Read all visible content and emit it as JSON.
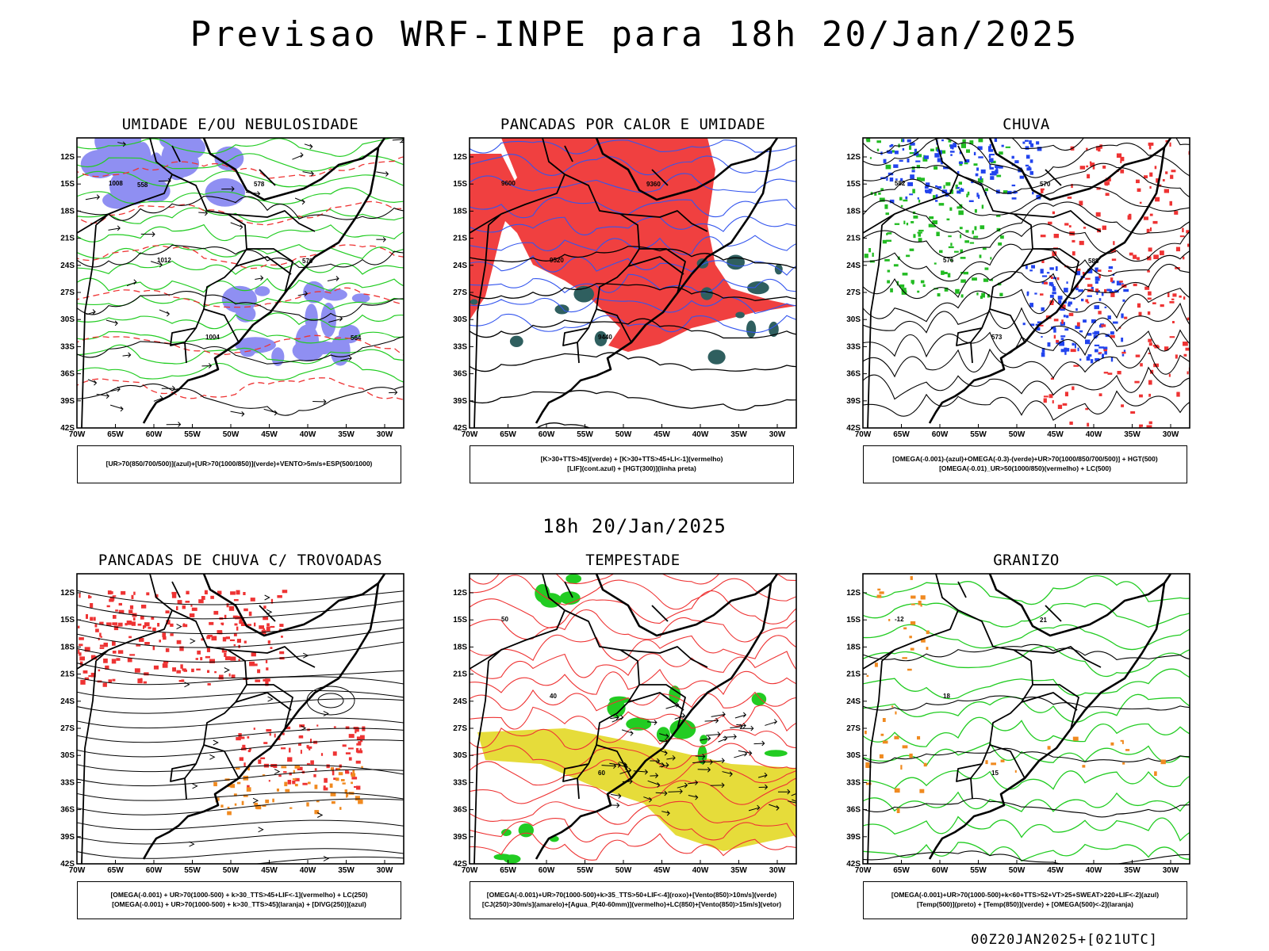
{
  "main_title": "Previsao WRF-INPE  para 18h 20/Jan/2025",
  "mid_title": "18h 20/Jan/2025",
  "footer": "00Z20JAN2025+[021UTC]",
  "chart_data": [
    {
      "type": "map",
      "title": "UMIDADE E/OU NEBULOSIDADE",
      "lat_labels": [
        "12S",
        "15S",
        "18S",
        "21S",
        "24S",
        "27S",
        "30S",
        "33S",
        "36S",
        "39S",
        "42S"
      ],
      "lon_labels": [
        "70W",
        "65W",
        "60W",
        "55W",
        "50W",
        "45W",
        "40W",
        "35W",
        "30W"
      ],
      "legend": [
        "[UR>70(850/700/500)](azul)+[UR>70(1000/850)](verde)+VENTO>5m/s+ESP(500/1000)"
      ],
      "contour_labels": [
        "1008",
        "1012",
        "1004",
        "578",
        "570",
        "564",
        "558"
      ],
      "colors": {
        "blue": "#8f8ff2",
        "green": "#22cc22",
        "red": "#ee3333"
      }
    },
    {
      "type": "map",
      "title": "PANCADAS POR CALOR E UMIDADE",
      "lat_labels": [
        "12S",
        "15S",
        "18S",
        "21S",
        "24S",
        "27S",
        "30S",
        "33S",
        "36S",
        "39S",
        "42S"
      ],
      "lon_labels": [
        "70W",
        "65W",
        "60W",
        "55W",
        "50W",
        "45W",
        "40W",
        "35W",
        "30W"
      ],
      "legend": [
        "[K>30+TTS>45](verde)  +  [K>30+TTS>45+LI<-1](vermelho)",
        "[LIF](cont.azul)  +  [HGT(300)](linha preta)"
      ],
      "contour_labels": [
        "9600",
        "9520",
        "9440",
        "9360"
      ],
      "colors": {
        "red": "#f04040",
        "teal": "#2f5f5f",
        "blue": "#3355ee"
      }
    },
    {
      "type": "map",
      "title": "CHUVA",
      "lat_labels": [
        "12S",
        "15S",
        "18S",
        "21S",
        "24S",
        "27S",
        "30S",
        "33S",
        "36S",
        "39S",
        "42S"
      ],
      "lon_labels": [
        "70W",
        "65W",
        "60W",
        "55W",
        "50W",
        "45W",
        "40W",
        "35W",
        "30W"
      ],
      "legend": [
        "[OMEGA(-0.001)-(azul)+OMEGA(-0.3)-(verde)+UR>70(1000/850/700/500)]  +  HGT(500)",
        "[OMEGA(-0.01)_UR>50(1000/850)(vermelho)  +  LC(500)"
      ],
      "contour_labels": [
        "582",
        "576",
        "573",
        "570",
        "588"
      ],
      "colors": {
        "red": "#ee3333",
        "green": "#22bb22",
        "blue": "#2244ee"
      }
    },
    {
      "type": "map",
      "title": "PANCADAS DE CHUVA C/ TROVOADAS",
      "lat_labels": [
        "12S",
        "15S",
        "18S",
        "21S",
        "24S",
        "27S",
        "30S",
        "33S",
        "36S",
        "39S",
        "42S"
      ],
      "lon_labels": [
        "70W",
        "65W",
        "60W",
        "55W",
        "50W",
        "45W",
        "40W",
        "35W",
        "30W"
      ],
      "legend": [
        "[OMEGA(-0.001)  +  UR>70(1000-500)  +  k>30_TTS>45+LIF<-1](vermelho)  +  LC(250)",
        "[OMEGA(-0.001)  +  UR>70(1000-500)  +  k>30_TTS>45](laranja)  +  [DIVG(250)](azul)"
      ],
      "contour_labels": [],
      "colors": {
        "red": "#ee3333",
        "orange": "#f08a20",
        "blue": "#2244ee"
      }
    },
    {
      "type": "map",
      "title": "TEMPESTADE",
      "lat_labels": [
        "12S",
        "15S",
        "18S",
        "21S",
        "24S",
        "27S",
        "30S",
        "33S",
        "36S",
        "39S",
        "42S"
      ],
      "lon_labels": [
        "70W",
        "65W",
        "60W",
        "55W",
        "50W",
        "45W",
        "40W",
        "35W",
        "30W"
      ],
      "legend": [
        "[OMEGA(-0.001)+UR>70(1000-500)+k>35_TTS>50+LIF<-4](roxo)+[Vento(850)>10m/s](verde)",
        "[CJ(250)>30m/s](amarelo)+[Agua_P(40-60mm)](vermelho)+LC(850)+[Vento(850)>15m/s](vetor)"
      ],
      "contour_labels": [
        "50",
        "40",
        "60"
      ],
      "colors": {
        "yellow": "#e6dc3a",
        "green": "#22cc22",
        "red": "#ee3333"
      }
    },
    {
      "type": "map",
      "title": "GRANIZO",
      "lat_labels": [
        "12S",
        "15S",
        "18S",
        "21S",
        "24S",
        "27S",
        "30S",
        "33S",
        "36S",
        "39S",
        "42S"
      ],
      "lon_labels": [
        "70W",
        "65W",
        "60W",
        "55W",
        "50W",
        "45W",
        "40W",
        "35W",
        "30W"
      ],
      "legend": [
        "[OMEGA(-0.001)+UR>70(1000-500)+k<60+TTS>52+VT>25+SWEAT>220+LIF<-2](azul)",
        "[Temp(500)](preto)  +  [Temp(850)](verde)  +  [OMEGA(500)<-2](laranja)"
      ],
      "contour_labels": [
        "-12",
        "18",
        "15",
        "21"
      ],
      "colors": {
        "green": "#22cc22",
        "orange": "#f08a20",
        "blue": "#2244ee"
      }
    }
  ]
}
